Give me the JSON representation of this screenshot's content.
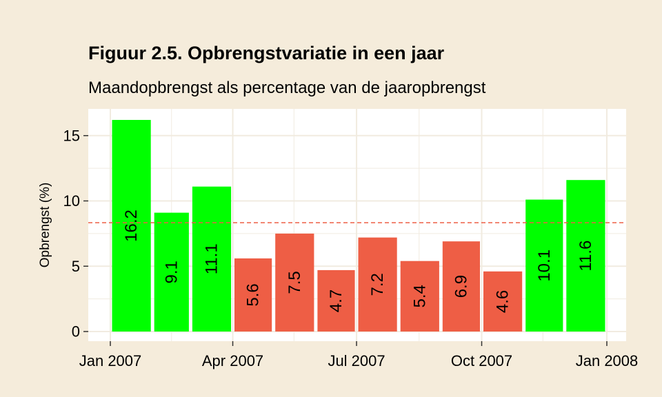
{
  "chart_data": {
    "type": "bar",
    "title": "Figuur 2.5. Opbrengstvariatie in een jaar",
    "subtitle": "Maandopbrengst als percentage van de jaaropbrengst",
    "ylabel": "Opbrengst (%)",
    "xlabel": "",
    "categories": [
      "2007-01",
      "2007-02",
      "2007-03",
      "2007-04",
      "2007-05",
      "2007-06",
      "2007-07",
      "2007-08",
      "2007-09",
      "2007-10",
      "2007-11",
      "2007-12"
    ],
    "values": [
      16.2,
      9.1,
      11.1,
      5.6,
      7.5,
      4.7,
      7.2,
      5.4,
      6.9,
      4.6,
      10.1,
      11.6
    ],
    "ylim": [
      0,
      17
    ],
    "yticks": [
      0,
      5,
      10,
      15
    ],
    "xtick_labels": [
      "Jan 2007",
      "Apr 2007",
      "Jul 2007",
      "Oct 2007",
      "Jan 2008"
    ],
    "reference_line": 8.33,
    "colors": {
      "above": "#00ff00",
      "below": "#ee5e45",
      "reference_line": "#ee5e45",
      "panel": "#ffffff",
      "background": "#f5ecdb",
      "grid": "#f1ebe0"
    },
    "grid": true,
    "legend": "none"
  }
}
